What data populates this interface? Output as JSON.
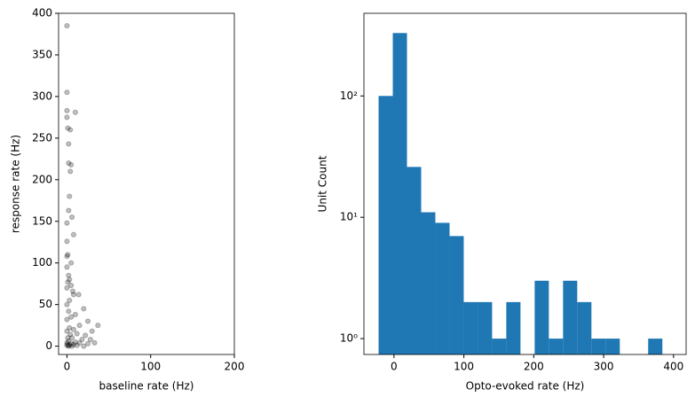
{
  "chart_data": [
    {
      "type": "scatter",
      "xlabel": "baseline rate (Hz)",
      "ylabel": "response rate (Hz)",
      "color": "#000000",
      "alpha": 0.25,
      "x": [
        0,
        0,
        0,
        0,
        10,
        1,
        4,
        2,
        2,
        5,
        4,
        3,
        2,
        6,
        0,
        8,
        0,
        1,
        0,
        5,
        0,
        2,
        3,
        1,
        5,
        0,
        7,
        8,
        14,
        3,
        0,
        20,
        2,
        10,
        5,
        0,
        25,
        37,
        15,
        3,
        8,
        0,
        30,
        12,
        4,
        22,
        1,
        6,
        18,
        28,
        2,
        10,
        0,
        15,
        5,
        25,
        1,
        8,
        3,
        0,
        12,
        20,
        6,
        2,
        33
      ],
      "y": [
        385,
        305,
        283,
        275,
        281,
        262,
        260,
        243,
        220,
        218,
        210,
        180,
        163,
        155,
        148,
        134,
        126,
        110,
        108,
        100,
        95,
        85,
        80,
        77,
        73,
        70,
        66,
        62,
        62,
        55,
        50,
        45,
        42,
        38,
        35,
        32,
        30,
        25,
        25,
        22,
        20,
        18,
        18,
        15,
        14,
        13,
        10,
        10,
        8,
        8,
        6,
        5,
        4,
        4,
        3,
        3,
        2,
        2,
        1,
        1,
        1,
        0,
        0,
        0,
        4
      ],
      "xlim": [
        -10,
        200
      ],
      "ylim": [
        -10,
        400
      ],
      "xticks": [
        0,
        100,
        200
      ],
      "yticks": [
        0,
        50,
        100,
        150,
        200,
        250,
        300,
        350,
        400
      ]
    },
    {
      "type": "histogram",
      "xlabel": "Opto-evoked rate (Hz)",
      "ylabel": "Unit Count",
      "color": "#1f77b4",
      "log_y": true,
      "bins": [
        -22,
        -1.7,
        18.6,
        38.9,
        59.2,
        79.5,
        99.8,
        120.1,
        140.4,
        160.7,
        181,
        201.3,
        221.6,
        241.9,
        262.2,
        282.5,
        302.8,
        323.1,
        343.4,
        363.7,
        384
      ],
      "values": [
        100,
        330,
        26,
        11,
        9,
        7,
        2,
        2,
        1,
        2,
        0,
        3,
        1,
        3,
        2,
        1,
        1,
        0,
        0,
        1
      ],
      "xlim": [
        -43,
        418
      ],
      "ylim": [
        0.74,
        480
      ],
      "xticks": [
        0,
        100,
        200,
        300,
        400
      ],
      "yticks": [
        {
          "value": 1,
          "label": "10⁰"
        },
        {
          "value": 10,
          "label": "10¹"
        },
        {
          "value": 100,
          "label": "10²"
        }
      ]
    }
  ]
}
